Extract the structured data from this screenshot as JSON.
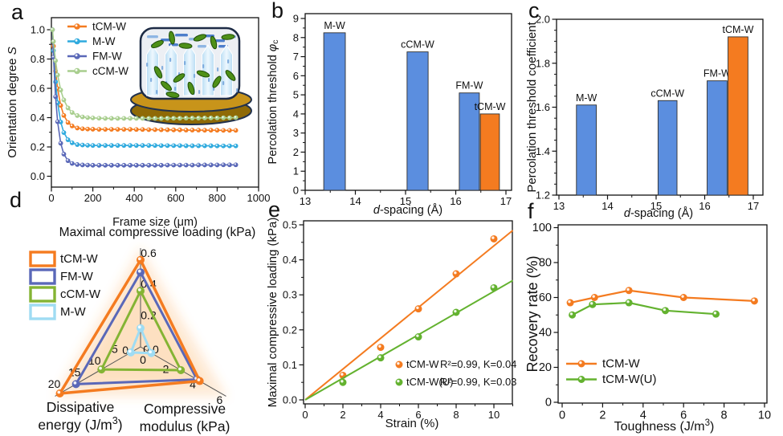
{
  "panel_letters": {
    "a": "a",
    "b": "b",
    "c": "c",
    "d": "d",
    "e": "e",
    "f": "f"
  },
  "colors": {
    "orange": "#F47B20",
    "bar_blue": "#5B8EDF",
    "cyan": "#2FAADE",
    "indigo": "#5A68B8",
    "pale_green": "#A8CE8E",
    "olive_green": "#84B434",
    "green": "#63B22F",
    "pale_cyan": "#9FDCF3"
  },
  "chart_data": [
    {
      "panel": "a",
      "type": "line",
      "xlabel": [
        {
          "t": "Frame size (μm)"
        }
      ],
      "ylabel": [
        {
          "t": "Orientation degree "
        },
        {
          "t": "S",
          "i": 1
        }
      ],
      "xlim": [
        0,
        1000
      ],
      "ylim": [
        0,
        1
      ],
      "xticks": [
        {
          "v": 0,
          "l": "0"
        },
        {
          "v": 200,
          "l": "200"
        },
        {
          "v": 400,
          "l": "400"
        },
        {
          "v": 600,
          "l": "600"
        },
        {
          "v": 800,
          "l": "800"
        },
        {
          "v": 1000,
          "l": "1000"
        }
      ],
      "yticks": [
        {
          "v": 0,
          "l": "0.0"
        },
        {
          "v": 0.2,
          "l": "0.2"
        },
        {
          "v": 0.4,
          "l": "0.4"
        },
        {
          "v": 0.6,
          "l": "0.6"
        },
        {
          "v": 0.8,
          "l": "0.8"
        },
        {
          "v": 1,
          "l": "1.0"
        }
      ],
      "xminor": 100,
      "yminor": 0.1,
      "x": [
        5,
        10,
        20,
        30,
        45,
        60,
        80,
        100,
        125,
        150,
        175,
        200,
        230,
        260,
        290,
        320,
        350,
        380,
        410,
        440,
        470,
        500,
        530,
        560,
        590,
        620,
        650,
        680,
        710,
        740,
        770,
        800,
        830,
        860,
        890
      ],
      "series": [
        {
          "name": "tCM-W",
          "color": "#F47B20",
          "y": [
            1.0,
            0.888,
            0.718,
            0.598,
            0.483,
            0.415,
            0.367,
            0.343,
            0.329,
            0.324,
            0.322,
            0.321,
            0.32,
            0.32,
            0.32,
            0.32,
            0.32,
            0.32,
            0.319,
            0.319,
            0.318,
            0.318,
            0.317,
            0.317,
            0.316,
            0.316,
            0.315,
            0.315,
            0.315,
            0.314,
            0.314,
            0.314,
            0.313,
            0.313,
            0.313
          ]
        },
        {
          "name": "M-W",
          "color": "#2FAADE",
          "y": [
            1.0,
            0.857,
            0.644,
            0.501,
            0.37,
            0.298,
            0.249,
            0.228,
            0.216,
            0.213,
            0.211,
            0.21,
            0.21,
            0.21,
            0.21,
            0.21,
            0.21,
            0.21,
            0.21,
            0.21,
            0.21,
            0.21,
            0.209,
            0.209,
            0.209,
            0.209,
            0.208,
            0.208,
            0.208,
            0.208,
            0.208,
            0.207,
            0.207,
            0.207,
            0.207
          ]
        },
        {
          "name": "FM-W",
          "color": "#5A68B8",
          "y": [
            1.0,
            0.812,
            0.543,
            0.372,
            0.225,
            0.151,
            0.106,
            0.087,
            0.08,
            0.077,
            0.076,
            0.075,
            0.075,
            0.075,
            0.075,
            0.075,
            0.075,
            0.075,
            0.075,
            0.075,
            0.075,
            0.075,
            0.075,
            0.076,
            0.076,
            0.076,
            0.076,
            0.076,
            0.077,
            0.077,
            0.077,
            0.077,
            0.078,
            0.078,
            0.078
          ]
        },
        {
          "name": "cCM-W",
          "color": "#A8CE8E",
          "y": [
            1.0,
            0.92,
            0.789,
            0.691,
            0.588,
            0.521,
            0.466,
            0.435,
            0.414,
            0.405,
            0.4,
            0.398,
            0.396,
            0.395,
            0.395,
            0.395,
            0.395,
            0.395,
            0.395,
            0.395,
            0.395,
            0.395,
            0.395,
            0.396,
            0.396,
            0.396,
            0.397,
            0.397,
            0.397,
            0.398,
            0.398,
            0.398,
            0.399,
            0.399,
            0.4
          ]
        }
      ],
      "legend": [
        {
          "label": "tCM-W",
          "color": "#F47B20"
        },
        {
          "label": "M-W",
          "color": "#2FAADE"
        },
        {
          "label": "FM-W",
          "color": "#5A68B8"
        },
        {
          "label": "cCM-W",
          "color": "#A8CE8E"
        }
      ]
    },
    {
      "panel": "b",
      "type": "bar",
      "xlabel": [
        {
          "t": "d",
          "i": 1
        },
        {
          "t": "-spacing (Å)"
        }
      ],
      "ylabel": [
        {
          "t": "Percolation threshold "
        },
        {
          "t": "φ",
          "i": 1
        },
        {
          "t": "c",
          "sub": 1
        }
      ],
      "xlim": [
        13,
        17.1
      ],
      "ylim": [
        0,
        9
      ],
      "xticks": [
        {
          "v": 13,
          "l": "13"
        },
        {
          "v": 14,
          "l": "14"
        },
        {
          "v": 15,
          "l": "15"
        },
        {
          "v": 16,
          "l": "16"
        },
        {
          "v": 17,
          "l": "17"
        }
      ],
      "yticks": [
        {
          "v": 0,
          "l": "0"
        },
        {
          "v": 1,
          "l": "1"
        },
        {
          "v": 2,
          "l": "2"
        },
        {
          "v": 3,
          "l": "3"
        },
        {
          "v": 4,
          "l": "4"
        },
        {
          "v": 5,
          "l": "5"
        },
        {
          "v": 6,
          "l": "6"
        },
        {
          "v": 7,
          "l": "7"
        },
        {
          "v": 8,
          "l": "8"
        },
        {
          "v": 9,
          "l": "9"
        }
      ],
      "xminor": 0.5,
      "yminor": 0.5,
      "bars": [
        {
          "label": "M-W",
          "x0": 13.37,
          "x1": 13.8,
          "value": 8.25,
          "color": "#5B8EDF"
        },
        {
          "label": "cCM-W",
          "x0": 15.03,
          "x1": 15.45,
          "value": 7.25,
          "color": "#5B8EDF"
        },
        {
          "label": "FM-W",
          "x0": 16.07,
          "x1": 16.47,
          "value": 5.1,
          "color": "#5B8EDF"
        },
        {
          "label": "tCM-W",
          "x0": 16.49,
          "x1": 16.87,
          "value": 4.0,
          "color": "#F47B20"
        }
      ]
    },
    {
      "panel": "c",
      "type": "bar",
      "xlabel": [
        {
          "t": "d",
          "i": 1
        },
        {
          "t": "-spacing (Å)"
        }
      ],
      "ylabel": [
        {
          "t": "Percolation threshold coefficient"
        }
      ],
      "xlim": [
        13,
        17.1
      ],
      "ylim": [
        1.2,
        2.0
      ],
      "xticks": [
        {
          "v": 13,
          "l": "13"
        },
        {
          "v": 14,
          "l": "14"
        },
        {
          "v": 15,
          "l": "15"
        },
        {
          "v": 16,
          "l": "16"
        },
        {
          "v": 17,
          "l": "17"
        }
      ],
      "yticks": [
        {
          "v": 1.2,
          "l": "1.2"
        },
        {
          "v": 1.4,
          "l": "1.4"
        },
        {
          "v": 1.6,
          "l": "1.6"
        },
        {
          "v": 1.8,
          "l": "1.8"
        },
        {
          "v": 2.0,
          "l": "2.0"
        }
      ],
      "xminor": 0.5,
      "yminor": 0.05,
      "bars": [
        {
          "label": "M-W",
          "x0": 13.36,
          "x1": 13.77,
          "value": 1.61,
          "color": "#5B8EDF"
        },
        {
          "label": "cCM-W",
          "x0": 15.04,
          "x1": 15.43,
          "value": 1.63,
          "color": "#5B8EDF"
        },
        {
          "label": "FM-W",
          "x0": 16.05,
          "x1": 16.46,
          "value": 1.72,
          "color": "#5B8EDF"
        },
        {
          "label": "tCM-W",
          "x0": 16.48,
          "x1": 16.89,
          "value": 1.92,
          "color": "#F47B20"
        }
      ]
    },
    {
      "panel": "d",
      "type": "radar",
      "title": [
        {
          "t": "Maximal compressive loading (kPa)"
        }
      ],
      "axes": [
        {
          "name": "Maximal compressive loading (kPa)",
          "max": 0.6,
          "ticks": [
            "0.0",
            "0.2",
            "0.4",
            "0.6"
          ]
        },
        {
          "name": "Dissipative energy (J/m³)",
          "max": 20,
          "ticks": [
            "0",
            "5",
            "10",
            "15",
            "20"
          ],
          "label_lines": [
            [
              {
                "t": "Dissipative"
              }
            ],
            [
              {
                "t": "energy (J/m"
              },
              {
                "t": "3",
                "sup": 1
              },
              {
                "t": ")"
              }
            ]
          ]
        },
        {
          "name": "Compressive modulus (kPa)",
          "max": 6,
          "ticks": [
            "0",
            "2",
            "4",
            "6"
          ],
          "label_lines": [
            [
              {
                "t": "Compressive"
              }
            ],
            [
              {
                "t": "modulus (kPa)"
              }
            ]
          ]
        }
      ],
      "series": [
        {
          "name": "tCM-W",
          "color": "#F47B20",
          "values": [
            0.56,
            20,
            4.4
          ]
        },
        {
          "name": "FM-W",
          "color": "#5A68B8",
          "values": [
            0.48,
            16,
            4.2
          ]
        },
        {
          "name": "cCM-W",
          "color": "#84B434",
          "values": [
            0.36,
            9.7,
            3.0
          ]
        },
        {
          "name": "M-W",
          "color": "#9FDCF3",
          "values": [
            0.12,
            2.4,
            0.8
          ]
        }
      ],
      "legend": [
        {
          "label": "tCM-W",
          "color": "#F47B20"
        },
        {
          "label": "FM-W",
          "color": "#5A68B8"
        },
        {
          "label": "cCM-W",
          "color": "#84B434"
        },
        {
          "label": "M-W",
          "color": "#9FDCF3"
        }
      ]
    },
    {
      "panel": "e",
      "type": "scatter",
      "xlabel": [
        {
          "t": "Strain (%)"
        }
      ],
      "ylabel": [
        {
          "t": "Maximal compressive loading (kPa)"
        }
      ],
      "xlim": [
        0,
        11
      ],
      "ylim": [
        0,
        0.5
      ],
      "xticks": [
        {
          "v": 0,
          "l": "0"
        },
        {
          "v": 2,
          "l": "2"
        },
        {
          "v": 4,
          "l": "4"
        },
        {
          "v": 6,
          "l": "6"
        },
        {
          "v": 8,
          "l": "8"
        },
        {
          "v": 10,
          "l": "10"
        }
      ],
      "yticks": [
        {
          "v": 0,
          "l": "0.0"
        },
        {
          "v": 0.1,
          "l": "0.1"
        },
        {
          "v": 0.2,
          "l": "0.2"
        },
        {
          "v": 0.3,
          "l": "0.3"
        },
        {
          "v": 0.4,
          "l": "0.4"
        },
        {
          "v": 0.5,
          "l": "0.5"
        }
      ],
      "xminor": 1,
      "yminor": 0.05,
      "series": [
        {
          "name": "tCM-W",
          "color": "#F47B20",
          "x": [
            2,
            4,
            6,
            8,
            10
          ],
          "y": [
            0.07,
            0.15,
            0.26,
            0.36,
            0.46
          ],
          "fit_slope": 0.044,
          "fit_label": "R²=0.99, K=0.04"
        },
        {
          "name": "tCM-W(U)",
          "color": "#63B22F",
          "x": [
            2,
            4,
            6,
            8,
            10
          ],
          "y": [
            0.05,
            0.12,
            0.18,
            0.25,
            0.32
          ],
          "fit_slope": 0.031,
          "fit_label": "R²=0.99, K=0.03"
        }
      ]
    },
    {
      "panel": "f",
      "type": "line",
      "xlabel": [
        {
          "t": "Toughness (J/m"
        },
        {
          "t": "3",
          "sup": 1
        },
        {
          "t": ")"
        }
      ],
      "ylabel": [
        {
          "t": "Recovery rate (%)"
        }
      ],
      "xlim": [
        0,
        10.2
      ],
      "ylim": [
        0,
        100
      ],
      "xticks": [
        {
          "v": 0,
          "l": "0"
        },
        {
          "v": 2,
          "l": "2"
        },
        {
          "v": 4,
          "l": "4"
        },
        {
          "v": 6,
          "l": "6"
        },
        {
          "v": 8,
          "l": "8"
        },
        {
          "v": 10,
          "l": "10"
        }
      ],
      "yticks": [
        {
          "v": 0,
          "l": "0"
        },
        {
          "v": 20,
          "l": "20"
        },
        {
          "v": 40,
          "l": "40"
        },
        {
          "v": 60,
          "l": "60"
        },
        {
          "v": 80,
          "l": "80"
        },
        {
          "v": 100,
          "l": "100"
        }
      ],
      "xminor": 1,
      "yminor": 10,
      "series": [
        {
          "name": "tCM-W",
          "color": "#F47B20",
          "x": [
            0.4,
            1.6,
            3.3,
            6.0,
            9.5
          ],
          "y": [
            57,
            60,
            64,
            60,
            58
          ]
        },
        {
          "name": "tCM-W(U)",
          "color": "#63B22F",
          "x": [
            0.5,
            1.5,
            3.3,
            5.1,
            7.6
          ],
          "y": [
            50,
            56,
            57,
            52.5,
            50.5
          ]
        }
      ],
      "legend": [
        {
          "label": "tCM-W",
          "color": "#F47B20"
        },
        {
          "label": "tCM-W(U)",
          "color": "#63B22F"
        }
      ]
    }
  ]
}
